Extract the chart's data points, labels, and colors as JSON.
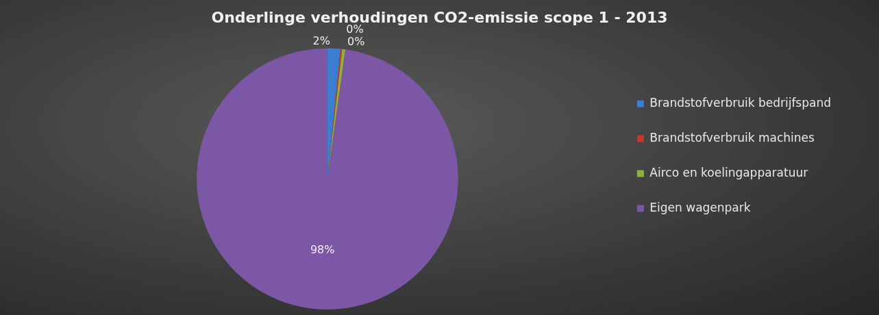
{
  "chart_data": {
    "type": "pie",
    "title": "Onderlinge verhoudingen CO2-emissie scope 1 - 2013",
    "categories": [
      "Brandstofverbruik bedrijfspand",
      "Brandstofverbruik machines",
      "Airco en koelingapparatuur",
      "Eigen wagenpark"
    ],
    "values": [
      1.6,
      0.2,
      0.4,
      97.8
    ],
    "value_labels": [
      "2%",
      "0%",
      "0%",
      "98%"
    ],
    "colors": [
      "#3b7dd0",
      "#c0392b",
      "#8cb23a",
      "#7b57a5"
    ],
    "legend": "right"
  }
}
